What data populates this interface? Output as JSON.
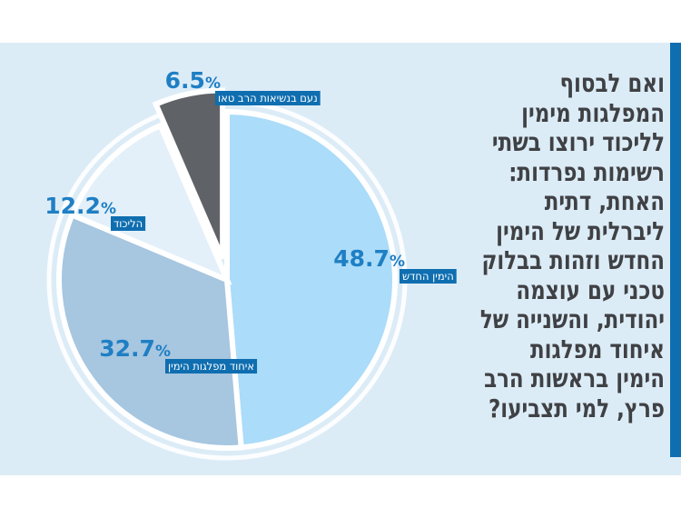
{
  "question": "ואם לבסוף המפלגות מימין לליכוד ירוצו בשתי רשימות נפרדות: האחת, דתית ליברלית של הימין החדש וזהות בבלוק טכני עם עוצמה יהודית, והשנייה של איחוד מפלגות הימין בראשות הרב פרץ, למי תצביעו?",
  "colors": {
    "panel": "#dcecf7",
    "accent": "#0f6eb0",
    "label_bg": "#0f6eb0",
    "percent_text": "#1f7fc4",
    "question_text": "#3f4144"
  },
  "chart_data": {
    "type": "pie",
    "unit": "%",
    "slices": [
      {
        "label": "הימין החדש",
        "value": 48.7,
        "value_text": "48.7",
        "color": "#abdcf9"
      },
      {
        "label": "איחוד מפלגות הימין",
        "value": 32.7,
        "value_text": "32.7",
        "color": "#a7c6e0"
      },
      {
        "label": "הליכוד",
        "value": 12.2,
        "value_text": "12.2",
        "color": "#e3f0f9"
      },
      {
        "label": "נעם בנשיאות הרב טאו",
        "value": 6.5,
        "value_text": "6.5",
        "color": "#5f6266"
      }
    ]
  }
}
